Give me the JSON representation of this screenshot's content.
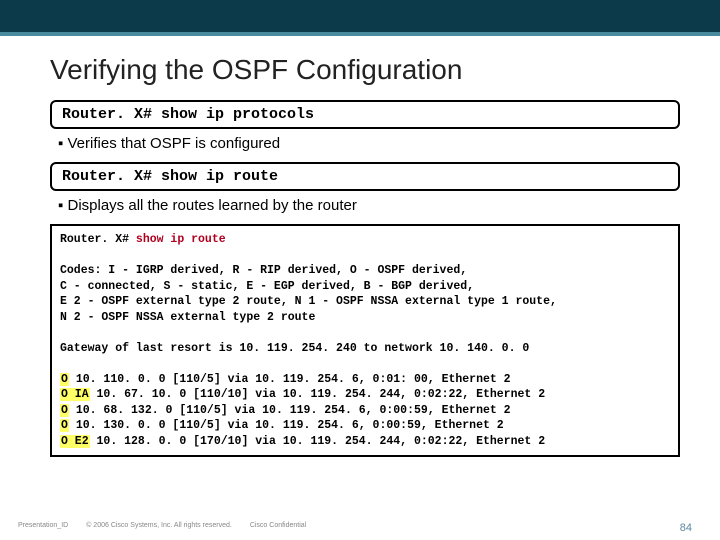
{
  "colors": {
    "topbar": "#0c3a4a",
    "accent": "#4a8a9e",
    "highlight": "#ffff66",
    "cmd_red": "#b00020",
    "border": "#000000",
    "text": "#222222",
    "footer_text": "#888888",
    "page_num": "#5a8aa0"
  },
  "typography": {
    "title_fontsize": 28,
    "bullet_fontsize": 15,
    "cmd_fontsize": 15,
    "output_fontsize": 11.5,
    "mono_family": "Courier New"
  },
  "title": "Verifying the OSPF Configuration",
  "cmd1": {
    "prompt": "Router. X#",
    "command": "show ip protocols"
  },
  "bullet1": "Verifies that OSPF is configured",
  "cmd2": {
    "prompt": "Router. X#",
    "command": "show ip route"
  },
  "bullet2": "Displays all the routes learned by the router",
  "output": {
    "header_prompt": "Router. X#",
    "header_cmd": "show ip route",
    "codes_lines": [
      "Codes: I - IGRP derived, R - RIP derived, O - OSPF derived,",
      "C - connected, S - static, E - EGP derived, B - BGP derived,",
      "E 2 - OSPF external type 2 route, N 1 - OSPF NSSA external type 1 route,",
      "N 2 - OSPF NSSA external type 2 route"
    ],
    "gateway_line": "Gateway of last resort is 10. 119. 254. 240 to network 10. 140. 0. 0",
    "routes": [
      {
        "code": "O",
        "text": "10. 110. 0. 0 [110/5] via 10. 119. 254. 6, 0:01: 00, Ethernet 2"
      },
      {
        "code": "O IA",
        "text": "10. 67. 10. 0 [110/10] via 10. 119. 254. 244, 0:02:22, Ethernet 2"
      },
      {
        "code": "O",
        "text": "10. 68. 132. 0 [110/5] via 10. 119. 254. 6, 0:00:59, Ethernet 2"
      },
      {
        "code": "O",
        "text": "10. 130. 0. 0 [110/5] via 10. 119. 254. 6, 0:00:59, Ethernet 2"
      },
      {
        "code": "O E2",
        "text": "10. 128. 0. 0 [170/10] via 10. 119. 254. 244, 0:02:22, Ethernet 2"
      }
    ]
  },
  "footer": {
    "left1": "Presentation_ID",
    "left2": "© 2006 Cisco Systems, Inc. All rights reserved.",
    "left3": "Cisco Confidential",
    "page": "84"
  }
}
